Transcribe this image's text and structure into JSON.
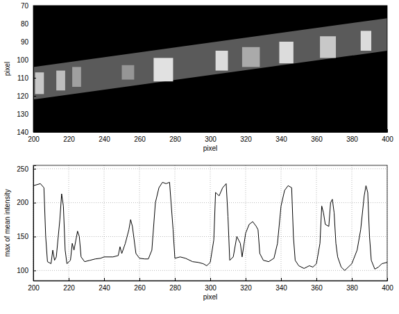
{
  "chart_data": [
    {
      "type": "image",
      "xlabel": "pixel",
      "ylabel": "pixel",
      "xlim": [
        200,
        400
      ],
      "ylim": [
        70,
        140
      ],
      "xticks": [
        200,
        220,
        240,
        260,
        280,
        300,
        320,
        340,
        360,
        380,
        400
      ],
      "yticks": [
        70,
        80,
        90,
        100,
        110,
        120,
        130,
        140
      ],
      "background": 0,
      "band": {
        "x": [
          200,
          400
        ],
        "upper": [
          104,
          77
        ],
        "lower": [
          122,
          95
        ],
        "intensity": 90
      },
      "patches": [
        {
          "x": [
            201,
            206
          ],
          "y": [
            107,
            119
          ],
          "intensity": 200
        },
        {
          "x": [
            213,
            218
          ],
          "y": [
            106,
            117
          ],
          "intensity": 190
        },
        {
          "x": [
            222,
            227
          ],
          "y": [
            104,
            115
          ],
          "intensity": 160
        },
        {
          "x": [
            250,
            257
          ],
          "y": [
            103,
            111
          ],
          "intensity": 150
        },
        {
          "x": [
            268,
            279
          ],
          "y": [
            99,
            112
          ],
          "intensity": 225
        },
        {
          "x": [
            303,
            310
          ],
          "y": [
            95,
            106
          ],
          "intensity": 220
        },
        {
          "x": [
            318,
            328
          ],
          "y": [
            93,
            104
          ],
          "intensity": 170
        },
        {
          "x": [
            339,
            347
          ],
          "y": [
            90,
            102
          ],
          "intensity": 220
        },
        {
          "x": [
            362,
            371
          ],
          "y": [
            87,
            99
          ],
          "intensity": 200
        },
        {
          "x": [
            385,
            391
          ],
          "y": [
            84,
            95
          ],
          "intensity": 220
        }
      ]
    },
    {
      "type": "line",
      "xlabel": "pixel",
      "ylabel": "max of mean intensity",
      "x": [
        200,
        204,
        206,
        207,
        208,
        210,
        211,
        212,
        213,
        215,
        216,
        217,
        218,
        219,
        221,
        222,
        223,
        225,
        226,
        227,
        229,
        232,
        235,
        238,
        240,
        245,
        248,
        249,
        250,
        252,
        254,
        255,
        256,
        258,
        260,
        263,
        265,
        267,
        269,
        271,
        273,
        275,
        277,
        279,
        280,
        283,
        286,
        290,
        293,
        296,
        298,
        300,
        302,
        303,
        305,
        307,
        309,
        310,
        311,
        313,
        315,
        317,
        318,
        320,
        322,
        324,
        326,
        327,
        328,
        330,
        333,
        336,
        338,
        340,
        342,
        344,
        346,
        347,
        348,
        350,
        353,
        356,
        358,
        360,
        362,
        363,
        364,
        365,
        367,
        368,
        369,
        370,
        371,
        372,
        374,
        376,
        378,
        380,
        383,
        385,
        387,
        388,
        389,
        390,
        391,
        393,
        395,
        397,
        400
      ],
      "values": [
        225,
        228,
        222,
        150,
        113,
        110,
        130,
        115,
        120,
        175,
        213,
        195,
        130,
        110,
        115,
        140,
        130,
        158,
        150,
        120,
        113,
        115,
        117,
        118,
        120,
        120,
        122,
        135,
        125,
        140,
        160,
        175,
        165,
        125,
        118,
        117,
        117,
        130,
        200,
        222,
        230,
        228,
        230,
        160,
        118,
        120,
        118,
        113,
        112,
        110,
        107,
        112,
        145,
        215,
        210,
        222,
        228,
        180,
        115,
        120,
        150,
        140,
        120,
        155,
        168,
        172,
        165,
        160,
        125,
        115,
        113,
        118,
        140,
        195,
        218,
        225,
        222,
        150,
        115,
        107,
        103,
        107,
        105,
        110,
        140,
        195,
        185,
        168,
        165,
        200,
        205,
        185,
        140,
        120,
        105,
        100,
        105,
        110,
        130,
        160,
        210,
        225,
        215,
        150,
        115,
        102,
        105,
        110,
        112
      ],
      "color": "#000000",
      "xlim": [
        200,
        400
      ],
      "ylim": [
        85,
        255
      ],
      "xticks": [
        200,
        220,
        240,
        260,
        280,
        300,
        320,
        340,
        360,
        380,
        400
      ],
      "yticks": [
        100,
        150,
        200,
        250
      ],
      "grid": true
    }
  ]
}
